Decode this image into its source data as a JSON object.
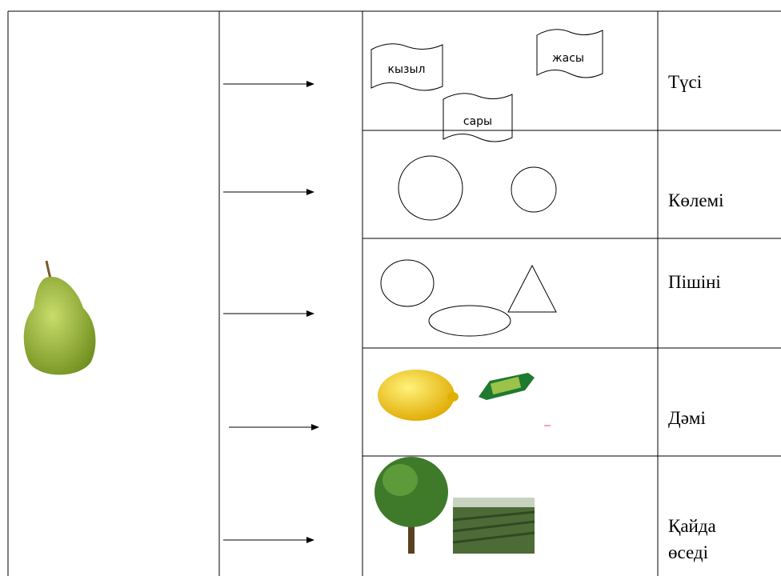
{
  "table": {
    "rows": [
      {
        "label": "Түсі",
        "tags": [
          "кызыл",
          "жасы",
          "сары"
        ]
      },
      {
        "label": "Көлемі"
      },
      {
        "label": "Пішіні"
      },
      {
        "label": "Дәмі"
      },
      {
        "label_lines": [
          "Қайда",
          "өседі"
        ]
      }
    ]
  }
}
